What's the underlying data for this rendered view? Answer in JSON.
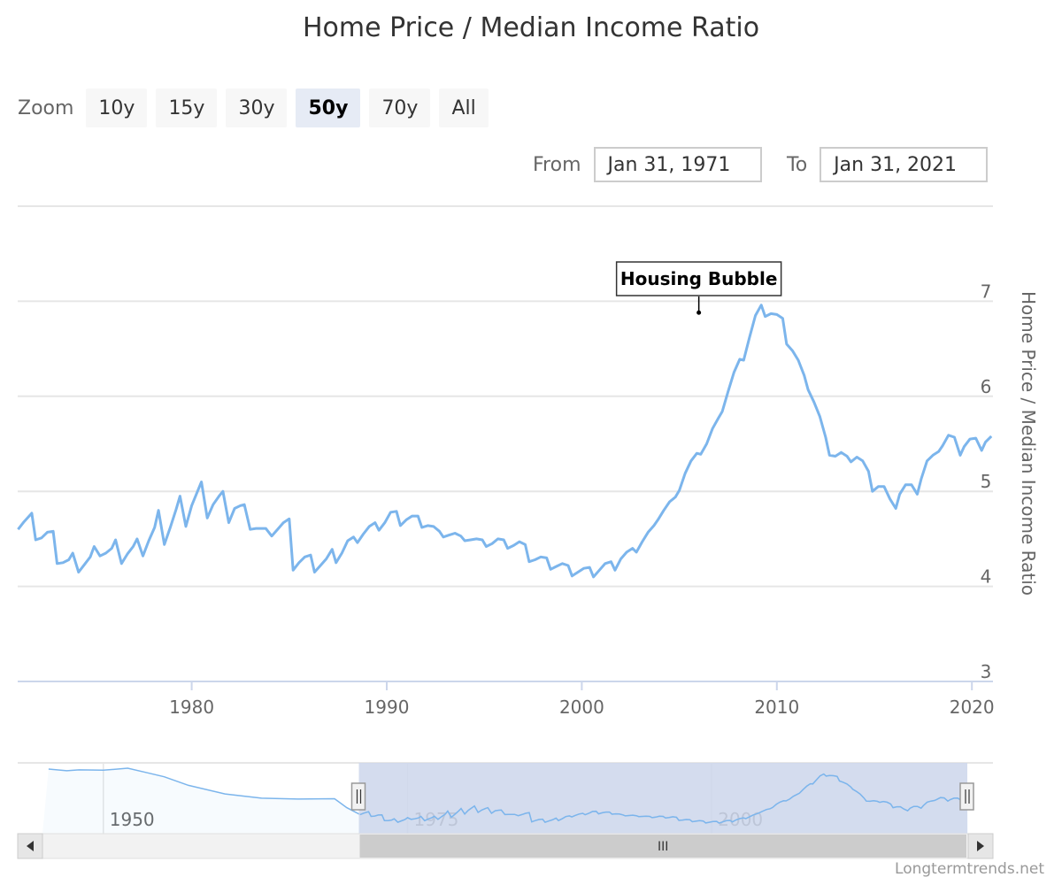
{
  "title": "Home Price / Median Income Ratio",
  "zoom": {
    "label": "Zoom",
    "buttons": [
      "10y",
      "15y",
      "30y",
      "50y",
      "70y",
      "All"
    ],
    "selected": "50y"
  },
  "range": {
    "from_label": "From",
    "from_value": "Jan 31, 1971",
    "to_label": "To",
    "to_value": "Jan 31, 2021"
  },
  "annotation": {
    "text": "Housing Bubble",
    "x": 2006.0,
    "y": 6.88
  },
  "navigator": {
    "tick_labels": [
      "1950",
      "1975",
      "2000"
    ],
    "tick_years": [
      1950,
      1975,
      2000
    ],
    "x_range": [
      1945,
      2021
    ],
    "selection": [
      1971,
      2021
    ],
    "scrollbar_grip": "III"
  },
  "credits": "Longtermtrends.net",
  "colors": {
    "line": "#7cb5ec",
    "navigator_mask": "#ccd6eb",
    "grid": "#e6e6e6"
  },
  "chart_data": {
    "type": "line",
    "title": "Home Price / Median Income Ratio",
    "ylabel": "Home Price / Median Income Ratio",
    "xlabel": "",
    "xlim": [
      1971.08,
      2021.08
    ],
    "ylim": [
      3,
      8
    ],
    "y_ticks": [
      3,
      4,
      5,
      6,
      7
    ],
    "x_ticks": [
      1980,
      1990,
      2000,
      2010,
      2020
    ],
    "grid": true,
    "series": [
      {
        "values": [
          [
            1971.1,
            4.6
          ],
          [
            1971.4,
            4.68
          ],
          [
            1971.8,
            4.77
          ],
          [
            1972.0,
            4.49
          ],
          [
            1972.3,
            4.51
          ],
          [
            1972.6,
            4.57
          ],
          [
            1972.9,
            4.58
          ],
          [
            1973.1,
            4.24
          ],
          [
            1973.4,
            4.25
          ],
          [
            1973.7,
            4.28
          ],
          [
            1973.9,
            4.35
          ],
          [
            1974.2,
            4.15
          ],
          [
            1974.5,
            4.23
          ],
          [
            1974.8,
            4.31
          ],
          [
            1975.0,
            4.42
          ],
          [
            1975.3,
            4.32
          ],
          [
            1975.6,
            4.35
          ],
          [
            1975.9,
            4.4
          ],
          [
            1976.1,
            4.49
          ],
          [
            1976.4,
            4.24
          ],
          [
            1976.7,
            4.34
          ],
          [
            1977.0,
            4.42
          ],
          [
            1977.2,
            4.5
          ],
          [
            1977.5,
            4.32
          ],
          [
            1977.8,
            4.48
          ],
          [
            1978.1,
            4.62
          ],
          [
            1978.3,
            4.8
          ],
          [
            1978.6,
            4.44
          ],
          [
            1978.9,
            4.62
          ],
          [
            1979.2,
            4.81
          ],
          [
            1979.4,
            4.95
          ],
          [
            1979.7,
            4.63
          ],
          [
            1980.0,
            4.85
          ],
          [
            1980.3,
            5.0
          ],
          [
            1980.5,
            5.1
          ],
          [
            1980.8,
            4.72
          ],
          [
            1981.1,
            4.86
          ],
          [
            1981.4,
            4.95
          ],
          [
            1981.6,
            5.0
          ],
          [
            1981.9,
            4.67
          ],
          [
            1982.2,
            4.82
          ],
          [
            1982.5,
            4.85
          ],
          [
            1982.7,
            4.86
          ],
          [
            1983.0,
            4.6
          ],
          [
            1983.3,
            4.61
          ],
          [
            1983.6,
            4.61
          ],
          [
            1983.8,
            4.61
          ],
          [
            1984.1,
            4.53
          ],
          [
            1984.4,
            4.6
          ],
          [
            1984.7,
            4.67
          ],
          [
            1985.0,
            4.71
          ],
          [
            1985.2,
            4.17
          ],
          [
            1985.5,
            4.25
          ],
          [
            1985.8,
            4.31
          ],
          [
            1986.1,
            4.33
          ],
          [
            1986.3,
            4.15
          ],
          [
            1986.6,
            4.22
          ],
          [
            1986.9,
            4.29
          ],
          [
            1987.2,
            4.39
          ],
          [
            1987.4,
            4.25
          ],
          [
            1987.7,
            4.35
          ],
          [
            1988.0,
            4.48
          ],
          [
            1988.3,
            4.52
          ],
          [
            1988.5,
            4.46
          ],
          [
            1988.8,
            4.55
          ],
          [
            1989.1,
            4.63
          ],
          [
            1989.4,
            4.67
          ],
          [
            1989.6,
            4.59
          ],
          [
            1989.9,
            4.67
          ],
          [
            1990.2,
            4.78
          ],
          [
            1990.5,
            4.79
          ],
          [
            1990.7,
            4.64
          ],
          [
            1991.0,
            4.7
          ],
          [
            1991.3,
            4.74
          ],
          [
            1991.6,
            4.74
          ],
          [
            1991.8,
            4.62
          ],
          [
            1992.1,
            4.64
          ],
          [
            1992.4,
            4.63
          ],
          [
            1992.7,
            4.58
          ],
          [
            1992.9,
            4.52
          ],
          [
            1993.2,
            4.54
          ],
          [
            1993.5,
            4.56
          ],
          [
            1993.8,
            4.53
          ],
          [
            1994.0,
            4.48
          ],
          [
            1994.3,
            4.49
          ],
          [
            1994.6,
            4.5
          ],
          [
            1994.9,
            4.49
          ],
          [
            1995.1,
            4.42
          ],
          [
            1995.4,
            4.45
          ],
          [
            1995.7,
            4.5
          ],
          [
            1996.0,
            4.49
          ],
          [
            1996.2,
            4.4
          ],
          [
            1996.5,
            4.43
          ],
          [
            1996.8,
            4.47
          ],
          [
            1997.1,
            4.44
          ],
          [
            1997.3,
            4.26
          ],
          [
            1997.6,
            4.28
          ],
          [
            1997.9,
            4.31
          ],
          [
            1998.2,
            4.3
          ],
          [
            1998.4,
            4.18
          ],
          [
            1998.7,
            4.21
          ],
          [
            1999.0,
            4.24
          ],
          [
            1999.3,
            4.22
          ],
          [
            1999.5,
            4.11
          ],
          [
            1999.8,
            4.15
          ],
          [
            2000.1,
            4.19
          ],
          [
            2000.4,
            4.2
          ],
          [
            2000.6,
            4.1
          ],
          [
            2000.9,
            4.17
          ],
          [
            2001.2,
            4.24
          ],
          [
            2001.5,
            4.26
          ],
          [
            2001.7,
            4.17
          ],
          [
            2002.0,
            4.29
          ],
          [
            2002.3,
            4.36
          ],
          [
            2002.6,
            4.4
          ],
          [
            2002.8,
            4.36
          ],
          [
            2003.1,
            4.47
          ],
          [
            2003.4,
            4.57
          ],
          [
            2003.7,
            4.64
          ],
          [
            2003.9,
            4.7
          ],
          [
            2004.2,
            4.8
          ],
          [
            2004.5,
            4.89
          ],
          [
            2004.8,
            4.94
          ],
          [
            2005.0,
            5.01
          ],
          [
            2005.3,
            5.19
          ],
          [
            2005.6,
            5.32
          ],
          [
            2005.9,
            5.4
          ],
          [
            2006.1,
            5.39
          ],
          [
            2006.4,
            5.5
          ],
          [
            2006.7,
            5.66
          ],
          [
            2007.0,
            5.77
          ],
          [
            2007.2,
            5.84
          ],
          [
            2007.5,
            6.05
          ],
          [
            2007.8,
            6.25
          ],
          [
            2008.1,
            6.39
          ],
          [
            2008.3,
            6.38
          ],
          [
            2008.6,
            6.62
          ],
          [
            2008.9,
            6.85
          ],
          [
            2009.2,
            6.96
          ],
          [
            2009.4,
            6.84
          ],
          [
            2009.7,
            6.87
          ],
          [
            2010.0,
            6.86
          ],
          [
            2010.3,
            6.82
          ],
          [
            2010.5,
            6.55
          ],
          [
            2010.8,
            6.48
          ],
          [
            2011.1,
            6.38
          ],
          [
            2011.4,
            6.22
          ],
          [
            2011.6,
            6.07
          ],
          [
            2011.9,
            5.94
          ],
          [
            2012.2,
            5.79
          ],
          [
            2012.5,
            5.57
          ],
          [
            2012.7,
            5.38
          ],
          [
            2013.0,
            5.37
          ],
          [
            2013.3,
            5.41
          ],
          [
            2013.6,
            5.37
          ],
          [
            2013.8,
            5.31
          ],
          [
            2014.1,
            5.36
          ],
          [
            2014.4,
            5.32
          ],
          [
            2014.7,
            5.21
          ],
          [
            2014.9,
            5.0
          ],
          [
            2015.2,
            5.05
          ],
          [
            2015.5,
            5.05
          ],
          [
            2015.8,
            4.92
          ],
          [
            2016.1,
            4.82
          ],
          [
            2016.3,
            4.97
          ],
          [
            2016.6,
            5.07
          ],
          [
            2016.9,
            5.07
          ],
          [
            2017.2,
            4.97
          ],
          [
            2017.4,
            5.13
          ],
          [
            2017.7,
            5.32
          ],
          [
            2018.0,
            5.38
          ],
          [
            2018.3,
            5.42
          ],
          [
            2018.5,
            5.48
          ],
          [
            2018.8,
            5.59
          ],
          [
            2019.1,
            5.57
          ],
          [
            2019.4,
            5.38
          ],
          [
            2019.6,
            5.47
          ],
          [
            2019.9,
            5.55
          ],
          [
            2020.2,
            5.56
          ],
          [
            2020.5,
            5.43
          ],
          [
            2020.7,
            5.52
          ],
          [
            2021.0,
            5.58
          ]
        ]
      }
    ]
  }
}
